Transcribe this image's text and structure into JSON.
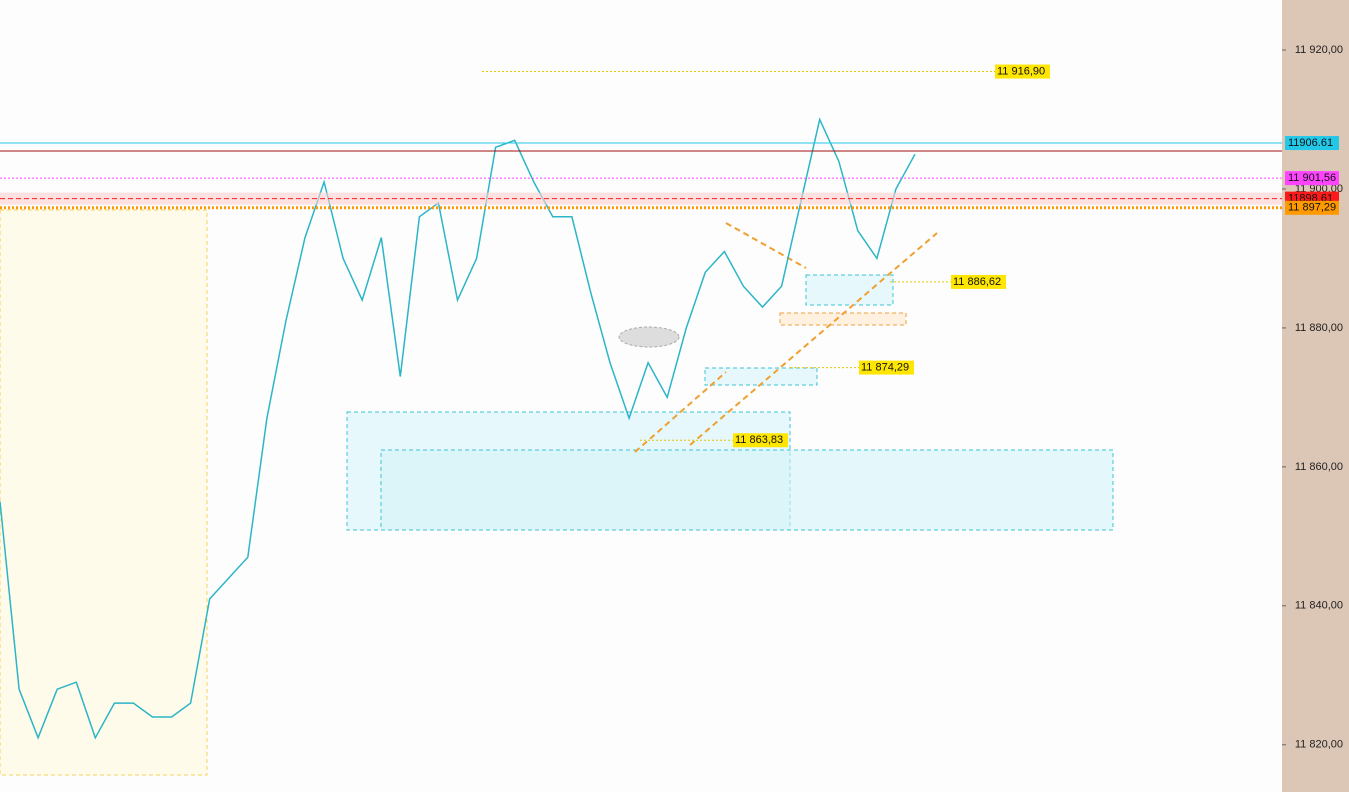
{
  "chart_data": {
    "type": "line",
    "series": [
      {
        "color": "#2bb5c8",
        "values": [
          11855,
          11828,
          11821,
          11828,
          11829,
          11821,
          11826,
          11826,
          11824,
          11824,
          11826,
          11841,
          11844,
          11847,
          11867,
          11881,
          11893,
          11901,
          11890,
          11884,
          11893,
          11873,
          11896,
          11898,
          11884,
          11890,
          11906,
          11907,
          11901,
          11896,
          11896,
          11885,
          11875,
          11867,
          11875,
          11870,
          11880,
          11888,
          11891,
          11886,
          11883,
          11886,
          11898,
          11910,
          11904,
          11894,
          11890,
          11900,
          11905
        ]
      }
    ],
    "ylim": [
      11813.2,
      11927.2
    ],
    "yticks": [
      {
        "value": 11920,
        "label": "11 920,00"
      },
      {
        "value": 11900,
        "label": "11 900,00"
      },
      {
        "value": 11880,
        "label": "11 880,00"
      },
      {
        "value": 11860,
        "label": "11 860,00"
      },
      {
        "value": 11840,
        "label": "11 840,00"
      },
      {
        "value": 11820,
        "label": "11 820,00"
      }
    ],
    "levels": [
      {
        "value": 11906.61,
        "label": "11906.61",
        "color": "#22c8e8"
      },
      {
        "value": 11905.47,
        "color": "#a01010"
      },
      {
        "value": 11901.56,
        "label": "11 901,56",
        "color": "#ff44ff"
      },
      {
        "value": 11898.61,
        "label": "11898.61",
        "color": "#ff1a1a"
      },
      {
        "value": 11897.29,
        "label": "11 897,29",
        "color": "#ff9900"
      }
    ],
    "annotations": [
      {
        "value": 11916.9,
        "label": "11 916,90"
      },
      {
        "value": 11886.62,
        "label": "11 886,62"
      },
      {
        "value": 11874.29,
        "label": "11 874,29"
      },
      {
        "value": 11863.83,
        "label": "11 863,83"
      }
    ]
  }
}
